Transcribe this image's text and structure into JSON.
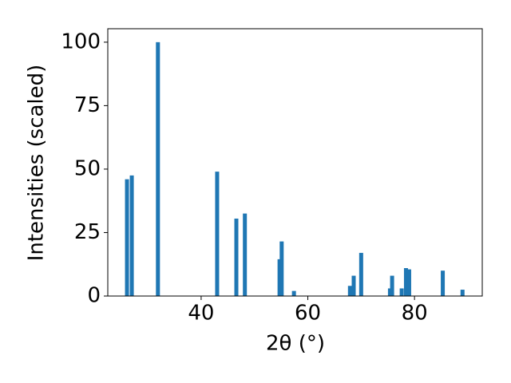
{
  "chart_data": {
    "type": "bar",
    "xlabel": "2θ (°)",
    "ylabel": "Intensities (scaled)",
    "x": [
      26.1,
      27.0,
      31.9,
      43.0,
      46.6,
      48.2,
      54.7,
      55.1,
      57.4,
      67.9,
      68.6,
      70.0,
      75.4,
      75.8,
      77.6,
      78.4,
      79.0,
      85.3,
      89.0
    ],
    "values": [
      46,
      47.5,
      100,
      49,
      30.5,
      32.5,
      14.5,
      21.5,
      2,
      4,
      8,
      17,
      3,
      8,
      3,
      11,
      10.5,
      10,
      2.5
    ],
    "bar_width": 0.75,
    "color": "#1f77b4",
    "xlim": [
      22.5,
      92.7
    ],
    "xticks": [
      40,
      60,
      80
    ],
    "ylim": [
      0,
      105.3
    ],
    "yticks": [
      0,
      25,
      50,
      75,
      100
    ],
    "grid": false
  }
}
